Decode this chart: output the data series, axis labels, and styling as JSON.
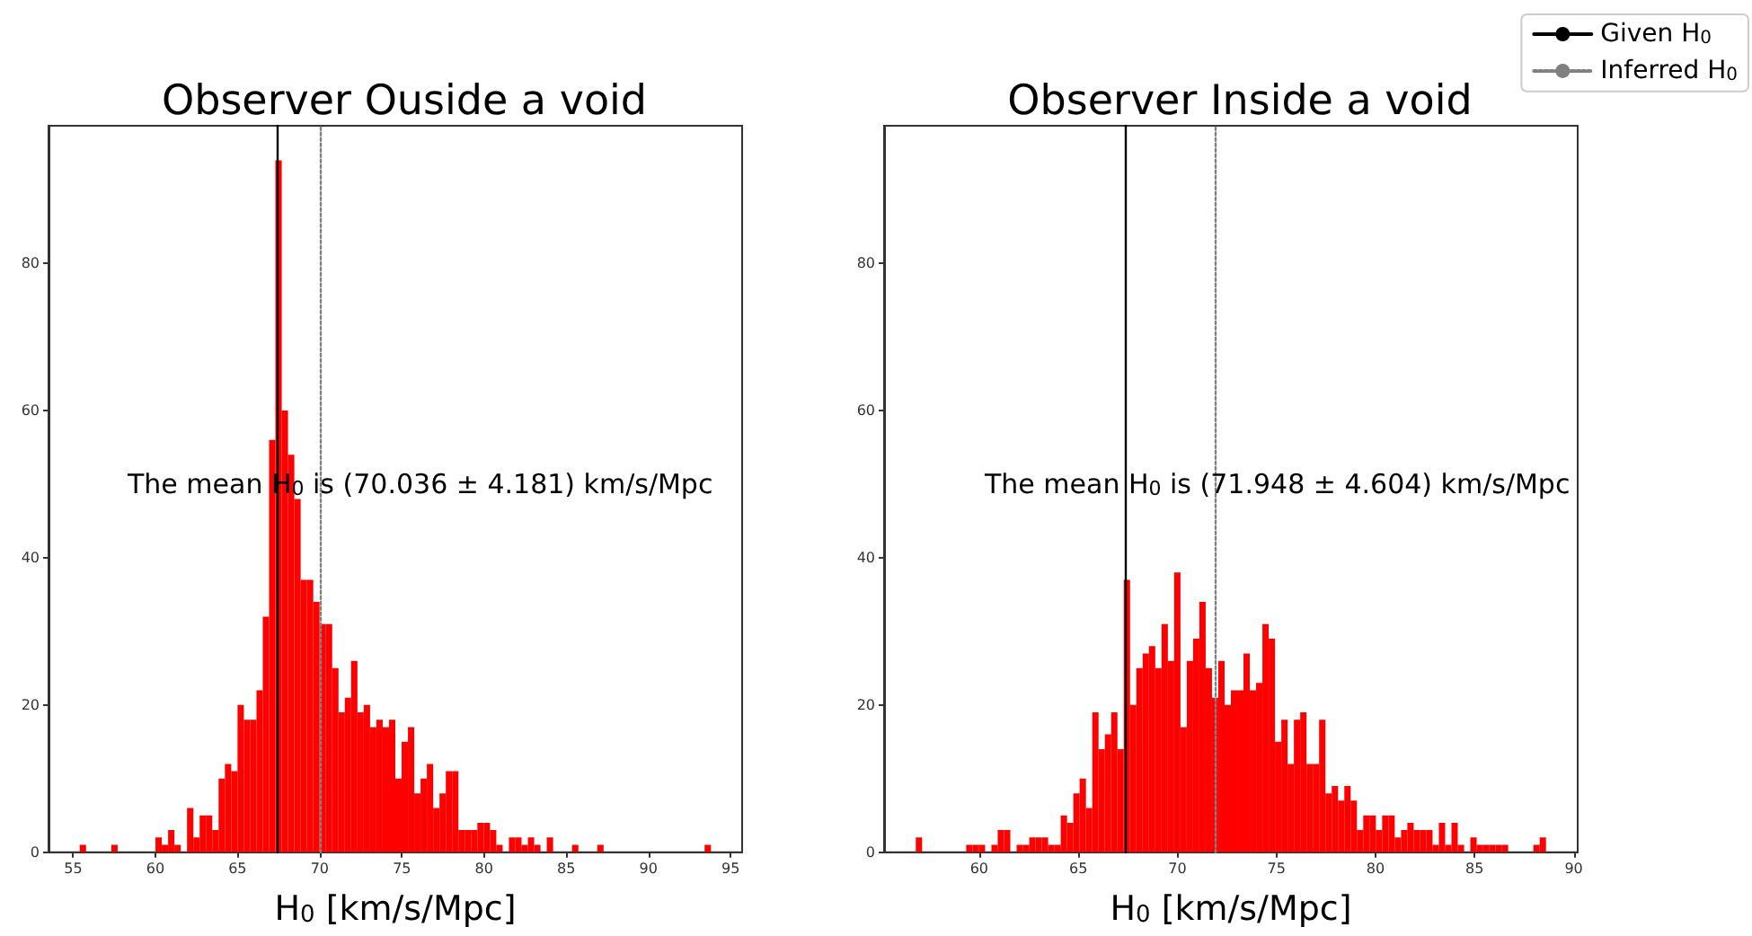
{
  "chart_data": [
    {
      "type": "histogram",
      "title": "Observer Ouside a void",
      "xlabel": "H$_{0}$ [km/s/Mpc]",
      "color": "#ff0000",
      "bins": [
        55.4,
        55.784,
        56.168,
        56.552,
        56.936,
        57.32,
        57.704,
        58.088,
        58.472,
        58.856,
        59.24,
        59.624,
        60.008,
        60.392,
        60.776,
        61.16,
        61.544,
        61.928,
        62.312,
        62.696,
        63.08,
        63.464,
        63.848,
        64.232,
        64.616,
        65.0,
        65.384,
        65.768,
        66.152,
        66.536,
        66.92,
        67.304,
        67.688,
        68.072,
        68.456,
        68.84,
        69.224,
        69.608,
        69.992,
        70.376,
        70.76,
        71.144,
        71.528,
        71.912,
        72.296,
        72.68,
        73.064,
        73.448,
        73.832,
        74.216,
        74.6,
        74.984,
        75.368,
        75.752,
        76.136,
        76.52,
        76.904,
        77.288,
        77.672,
        78.056,
        78.44,
        78.824,
        79.208,
        79.592,
        79.976,
        80.36,
        80.744,
        81.128,
        81.512,
        81.896,
        82.28,
        82.664,
        83.048,
        83.432,
        83.816,
        84.2,
        84.584,
        84.968,
        85.352,
        85.736,
        86.12,
        86.504,
        86.888,
        87.272,
        87.656,
        88.04,
        88.424,
        88.808,
        89.192,
        89.576,
        89.96,
        90.344,
        90.728,
        91.112,
        91.496,
        91.88,
        92.264,
        92.648,
        93.032,
        93.416,
        93.8
      ],
      "values": [
        1,
        0,
        0,
        0,
        0,
        1,
        0,
        0,
        0,
        0,
        0,
        0,
        2,
        1,
        3,
        1,
        0,
        6,
        2,
        5,
        5,
        3,
        10,
        12,
        11,
        20,
        18,
        18,
        22,
        32,
        56,
        94,
        60,
        54,
        48,
        37,
        37,
        34,
        31,
        31,
        25,
        19,
        21,
        26,
        19,
        20,
        17,
        18,
        17,
        18,
        10,
        15,
        17,
        8,
        10,
        12,
        6,
        8,
        11,
        11,
        3,
        3,
        3,
        4,
        4,
        3,
        1,
        0,
        2,
        2,
        1,
        2,
        1,
        0,
        2,
        0,
        0,
        0,
        1,
        0,
        0,
        0,
        1,
        0,
        0,
        0,
        0,
        0,
        0,
        0,
        0,
        0,
        0,
        0,
        0,
        0,
        0,
        0,
        0,
        1
      ],
      "xlim": [
        53.5,
        95.7
      ],
      "xticks": [
        55,
        60,
        65,
        70,
        75,
        80,
        85,
        90,
        95
      ],
      "ylim": [
        0,
        98.7
      ],
      "yticks": [
        0,
        20,
        40,
        60,
        80
      ],
      "ref_lines": [
        {
          "axis": "x",
          "value": 67.4,
          "color": "#000000",
          "line_style": "solid"
        },
        {
          "axis": "x",
          "value": 70.036,
          "color": "#808080",
          "line_style": "dotted"
        }
      ],
      "annotations": [
        "The mean H$_{0}$ is (70.036 ± 4.181) km/s/Mpc"
      ]
    },
    {
      "type": "histogram",
      "title": "Observer Inside a void",
      "xlabel": "H$_{0}$ [km/s/Mpc]",
      "color": "#ff0000",
      "bins": [
        56.8,
        57.118,
        57.436,
        57.754,
        58.072,
        58.39,
        58.708,
        59.026,
        59.344,
        59.662,
        59.98,
        60.298,
        60.616,
        60.934,
        61.252,
        61.57,
        61.888,
        62.206,
        62.524,
        62.842,
        63.16,
        63.478,
        63.796,
        64.114,
        64.432,
        64.75,
        65.068,
        65.386,
        65.704,
        66.022,
        66.34,
        66.658,
        66.976,
        67.294,
        67.612,
        67.93,
        68.248,
        68.566,
        68.884,
        69.202,
        69.52,
        69.838,
        70.156,
        70.474,
        70.792,
        71.11,
        71.428,
        71.746,
        72.064,
        72.382,
        72.7,
        73.018,
        73.336,
        73.654,
        73.972,
        74.29,
        74.608,
        74.926,
        75.244,
        75.562,
        75.88,
        76.198,
        76.516,
        76.834,
        77.152,
        77.47,
        77.788,
        78.106,
        78.424,
        78.742,
        79.06,
        79.378,
        79.696,
        80.014,
        80.332,
        80.65,
        80.968,
        81.286,
        81.604,
        81.922,
        82.24,
        82.558,
        82.876,
        83.194,
        83.512,
        83.83,
        84.148,
        84.466,
        84.784,
        85.102,
        85.42,
        85.738,
        86.056,
        86.374,
        86.692,
        87.01,
        87.328,
        87.646,
        87.964,
        88.282,
        88.6
      ],
      "values": [
        2,
        0,
        0,
        0,
        0,
        0,
        0,
        0,
        1,
        1,
        1,
        0,
        1,
        3,
        3,
        0,
        1,
        1,
        2,
        2,
        2,
        1,
        1,
        5,
        4,
        8,
        10,
        6,
        19,
        14,
        16,
        19,
        14,
        37,
        20,
        25,
        27,
        28,
        25,
        31,
        26,
        38,
        17,
        26,
        29,
        34,
        25,
        21,
        26,
        20,
        22,
        22,
        27,
        22,
        23,
        31,
        29,
        15,
        18,
        12,
        18,
        19,
        12,
        12,
        18,
        8,
        9,
        7,
        9,
        7,
        3,
        5,
        5,
        3,
        5,
        5,
        2,
        3,
        4,
        3,
        3,
        3,
        1,
        4,
        1,
        4,
        1,
        0,
        2,
        1,
        1,
        1,
        1,
        1,
        0,
        0,
        0,
        0,
        1,
        2
      ],
      "xlim": [
        55.2,
        90.2
      ],
      "xticks": [
        60,
        65,
        70,
        75,
        80,
        85,
        90
      ],
      "ylim": [
        0,
        98.7
      ],
      "yticks": [
        0,
        20,
        40,
        60,
        80
      ],
      "ref_lines": [
        {
          "axis": "x",
          "value": 67.4,
          "label": "Given H$_{0}$",
          "color": "#000000",
          "line_style": "solid"
        },
        {
          "axis": "x",
          "value": 71.948,
          "label": "Inferred H$_{0}$",
          "color": "#808080",
          "line_style": "dotted"
        }
      ],
      "annotations": [
        "The mean H$_{0}$ is (71.948 ± 4.604) km/s/Mpc"
      ],
      "legend": "top right"
    }
  ]
}
